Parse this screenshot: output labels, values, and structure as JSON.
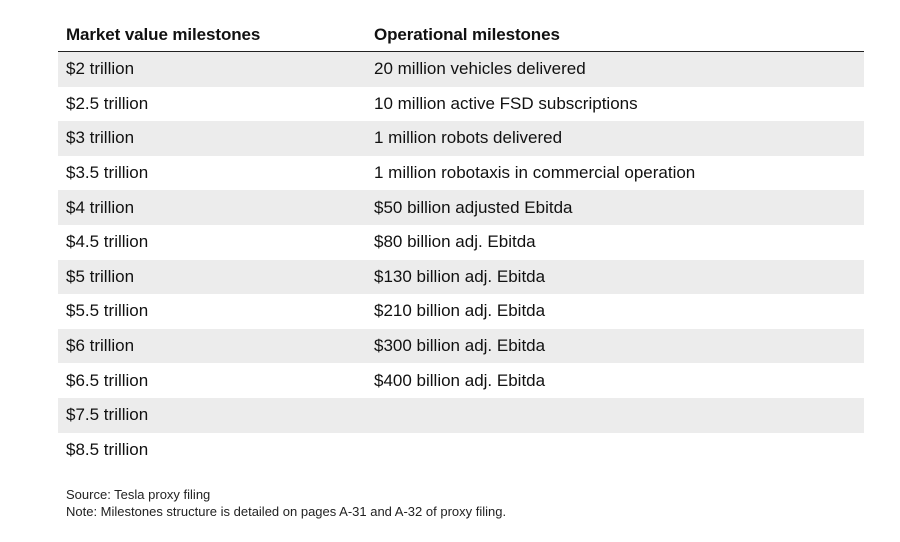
{
  "table": {
    "headers": {
      "market": "Market value milestones",
      "operational": "Operational milestones"
    },
    "rows": [
      {
        "market": "$2 trillion",
        "operational": "20 million vehicles delivered"
      },
      {
        "market": "$2.5 trillion",
        "operational": "10 million active FSD subscriptions"
      },
      {
        "market": "$3 trillion",
        "operational": "1 million robots delivered"
      },
      {
        "market": "$3.5 trillion",
        "operational": "1 million robotaxis in commercial operation"
      },
      {
        "market": "$4 trillion",
        "operational": "$50 billion adjusted Ebitda"
      },
      {
        "market": "$4.5 trillion",
        "operational": "$80 billion adj. Ebitda"
      },
      {
        "market": "$5 trillion",
        "operational": "$130 billion adj. Ebitda"
      },
      {
        "market": "$5.5 trillion",
        "operational": "$210 billion adj. Ebitda"
      },
      {
        "market": "$6 trillion",
        "operational": "$300 billion adj. Ebitda"
      },
      {
        "market": "$6.5 trillion",
        "operational": "$400 billion adj. Ebitda"
      },
      {
        "market": "$7.5 trillion",
        "operational": ""
      },
      {
        "market": "$8.5 trillion",
        "operational": ""
      }
    ]
  },
  "footer": {
    "source": "Source: Tesla proxy filing",
    "note": "Note: Milestones structure is detailed on pages A-31 and A-32 of proxy filing."
  }
}
